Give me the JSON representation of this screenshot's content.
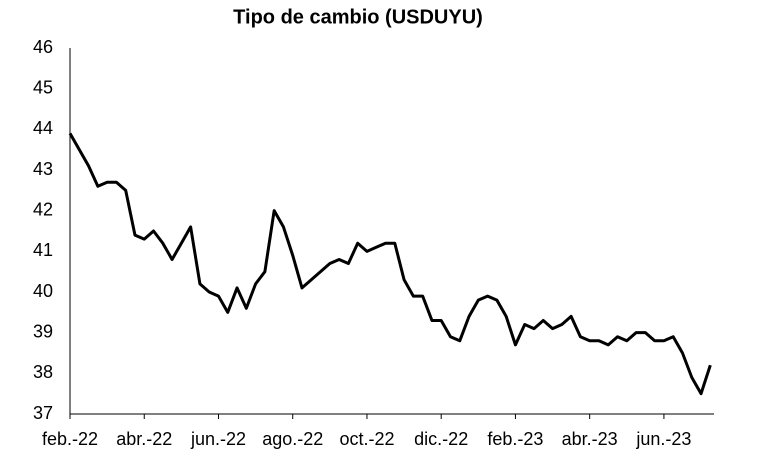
{
  "chart_data": {
    "type": "line",
    "title": "Tipo de cambio (USDUYU)",
    "categories": [
      "feb.-22",
      null,
      null,
      null,
      null,
      null,
      null,
      null,
      "abr.-22",
      null,
      null,
      null,
      null,
      null,
      null,
      null,
      "jun.-22",
      null,
      null,
      null,
      null,
      null,
      null,
      null,
      "ago.-22",
      null,
      null,
      null,
      null,
      null,
      null,
      null,
      "oct.-22",
      null,
      null,
      null,
      null,
      null,
      null,
      null,
      "dic.-22",
      null,
      null,
      null,
      null,
      null,
      null,
      null,
      "feb.-23",
      null,
      null,
      null,
      null,
      null,
      null,
      null,
      "abr.-23",
      null,
      null,
      null,
      null,
      null,
      null,
      null,
      "jun.-23",
      null,
      null,
      null,
      null,
      null
    ],
    "values": [
      43.9,
      43.5,
      43.1,
      42.6,
      42.7,
      42.7,
      42.5,
      41.4,
      41.3,
      41.5,
      41.2,
      40.8,
      41.2,
      41.6,
      40.2,
      40.0,
      39.9,
      39.5,
      40.1,
      39.6,
      40.2,
      40.5,
      42.0,
      41.6,
      40.9,
      40.1,
      40.3,
      40.5,
      40.7,
      40.8,
      40.7,
      41.2,
      41.0,
      41.1,
      41.2,
      41.2,
      40.3,
      39.9,
      39.9,
      39.3,
      39.3,
      38.9,
      38.8,
      39.4,
      39.8,
      39.9,
      39.8,
      39.4,
      38.7,
      39.2,
      39.1,
      39.3,
      39.1,
      39.2,
      39.4,
      38.9,
      38.8,
      38.8,
      38.7,
      38.9,
      38.8,
      39.0,
      39.0,
      38.8,
      38.8,
      38.9,
      38.5,
      37.9,
      37.5,
      38.2
    ],
    "color": "#000000",
    "ylim": [
      37,
      46
    ],
    "yticks": [
      37,
      38,
      39,
      40,
      41,
      42,
      43,
      44,
      45,
      46
    ],
    "grid": false
  }
}
